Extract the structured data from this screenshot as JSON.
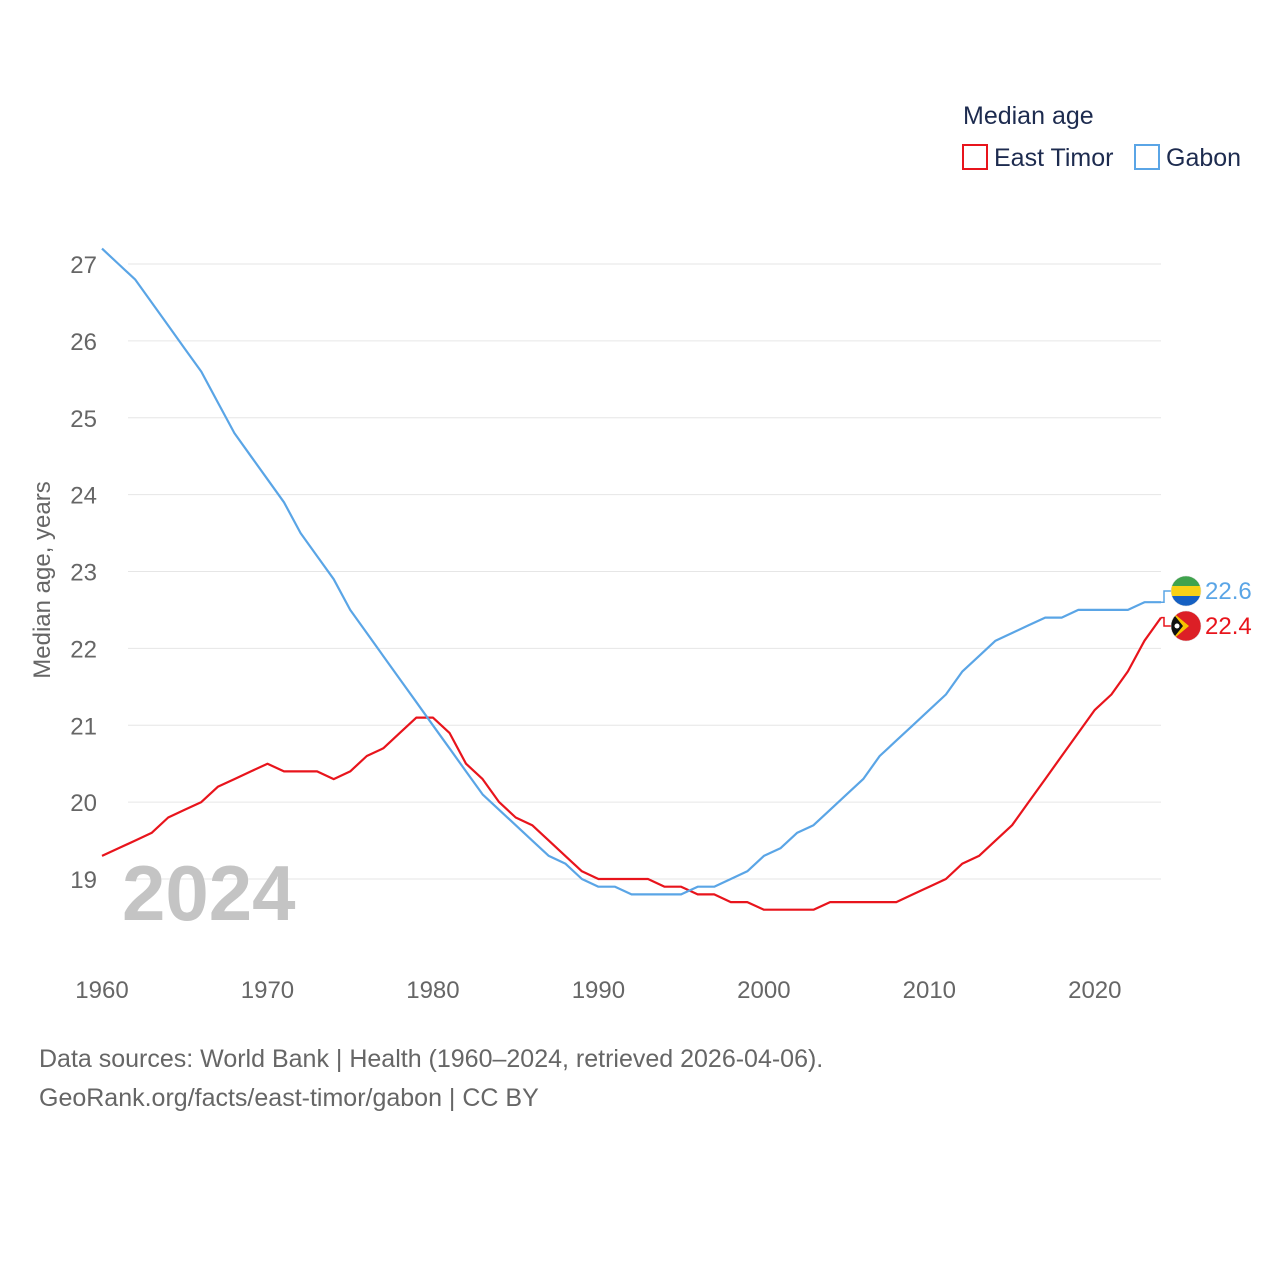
{
  "chart_data": {
    "type": "line",
    "legend_title": "Median age",
    "ylabel": "Median age, years",
    "xlim": [
      1960,
      2024
    ],
    "ylim": [
      18.0,
      27.3
    ],
    "xticks": [
      1960,
      1970,
      1980,
      1990,
      2000,
      2010,
      2020
    ],
    "yticks": [
      19,
      20,
      21,
      22,
      23,
      24,
      25,
      26,
      27
    ],
    "current_year_label": "2024",
    "x": [
      1960,
      1961,
      1962,
      1963,
      1964,
      1965,
      1966,
      1967,
      1968,
      1969,
      1970,
      1971,
      1972,
      1973,
      1974,
      1975,
      1976,
      1977,
      1978,
      1979,
      1980,
      1981,
      1982,
      1983,
      1984,
      1985,
      1986,
      1987,
      1988,
      1989,
      1990,
      1991,
      1992,
      1993,
      1994,
      1995,
      1996,
      1997,
      1998,
      1999,
      2000,
      2001,
      2002,
      2003,
      2004,
      2005,
      2006,
      2007,
      2008,
      2009,
      2010,
      2011,
      2012,
      2013,
      2014,
      2015,
      2016,
      2017,
      2018,
      2019,
      2020,
      2021,
      2022,
      2023,
      2024
    ],
    "series": [
      {
        "name": "East Timor",
        "color": "#e8141c",
        "end_label": "22.4",
        "values": [
          19.3,
          19.4,
          19.5,
          19.6,
          19.8,
          19.9,
          20.0,
          20.2,
          20.3,
          20.4,
          20.5,
          20.4,
          20.4,
          20.4,
          20.3,
          20.4,
          20.6,
          20.7,
          20.9,
          21.1,
          21.1,
          20.9,
          20.5,
          20.3,
          20.0,
          19.8,
          19.7,
          19.5,
          19.3,
          19.1,
          19.0,
          19.0,
          19.0,
          19.0,
          18.9,
          18.9,
          18.8,
          18.8,
          18.7,
          18.7,
          18.6,
          18.6,
          18.6,
          18.6,
          18.7,
          18.7,
          18.7,
          18.7,
          18.7,
          18.8,
          18.9,
          19.0,
          19.2,
          19.3,
          19.5,
          19.7,
          20.0,
          20.3,
          20.6,
          20.9,
          21.2,
          21.4,
          21.7,
          22.1,
          22.4
        ]
      },
      {
        "name": "Gabon",
        "color": "#5aa5e6",
        "end_label": "22.6",
        "values": [
          27.2,
          27.0,
          26.8,
          26.5,
          26.2,
          25.9,
          25.6,
          25.2,
          24.8,
          24.5,
          24.2,
          23.9,
          23.5,
          23.2,
          22.9,
          22.5,
          22.2,
          21.9,
          21.6,
          21.3,
          21.0,
          20.7,
          20.4,
          20.1,
          19.9,
          19.7,
          19.5,
          19.3,
          19.2,
          19.0,
          18.9,
          18.9,
          18.8,
          18.8,
          18.8,
          18.8,
          18.9,
          18.9,
          19.0,
          19.1,
          19.3,
          19.4,
          19.6,
          19.7,
          19.9,
          20.1,
          20.3,
          20.6,
          20.8,
          21.0,
          21.2,
          21.4,
          21.7,
          21.9,
          22.1,
          22.2,
          22.3,
          22.4,
          22.4,
          22.5,
          22.5,
          22.5,
          22.5,
          22.6,
          22.6
        ]
      }
    ]
  },
  "footer": {
    "line1": "Data sources: World Bank | Health (1960–2024, retrieved 2026-04-06).",
    "line2": "GeoRank.org/facts/east-timor/gabon | CC BY"
  }
}
